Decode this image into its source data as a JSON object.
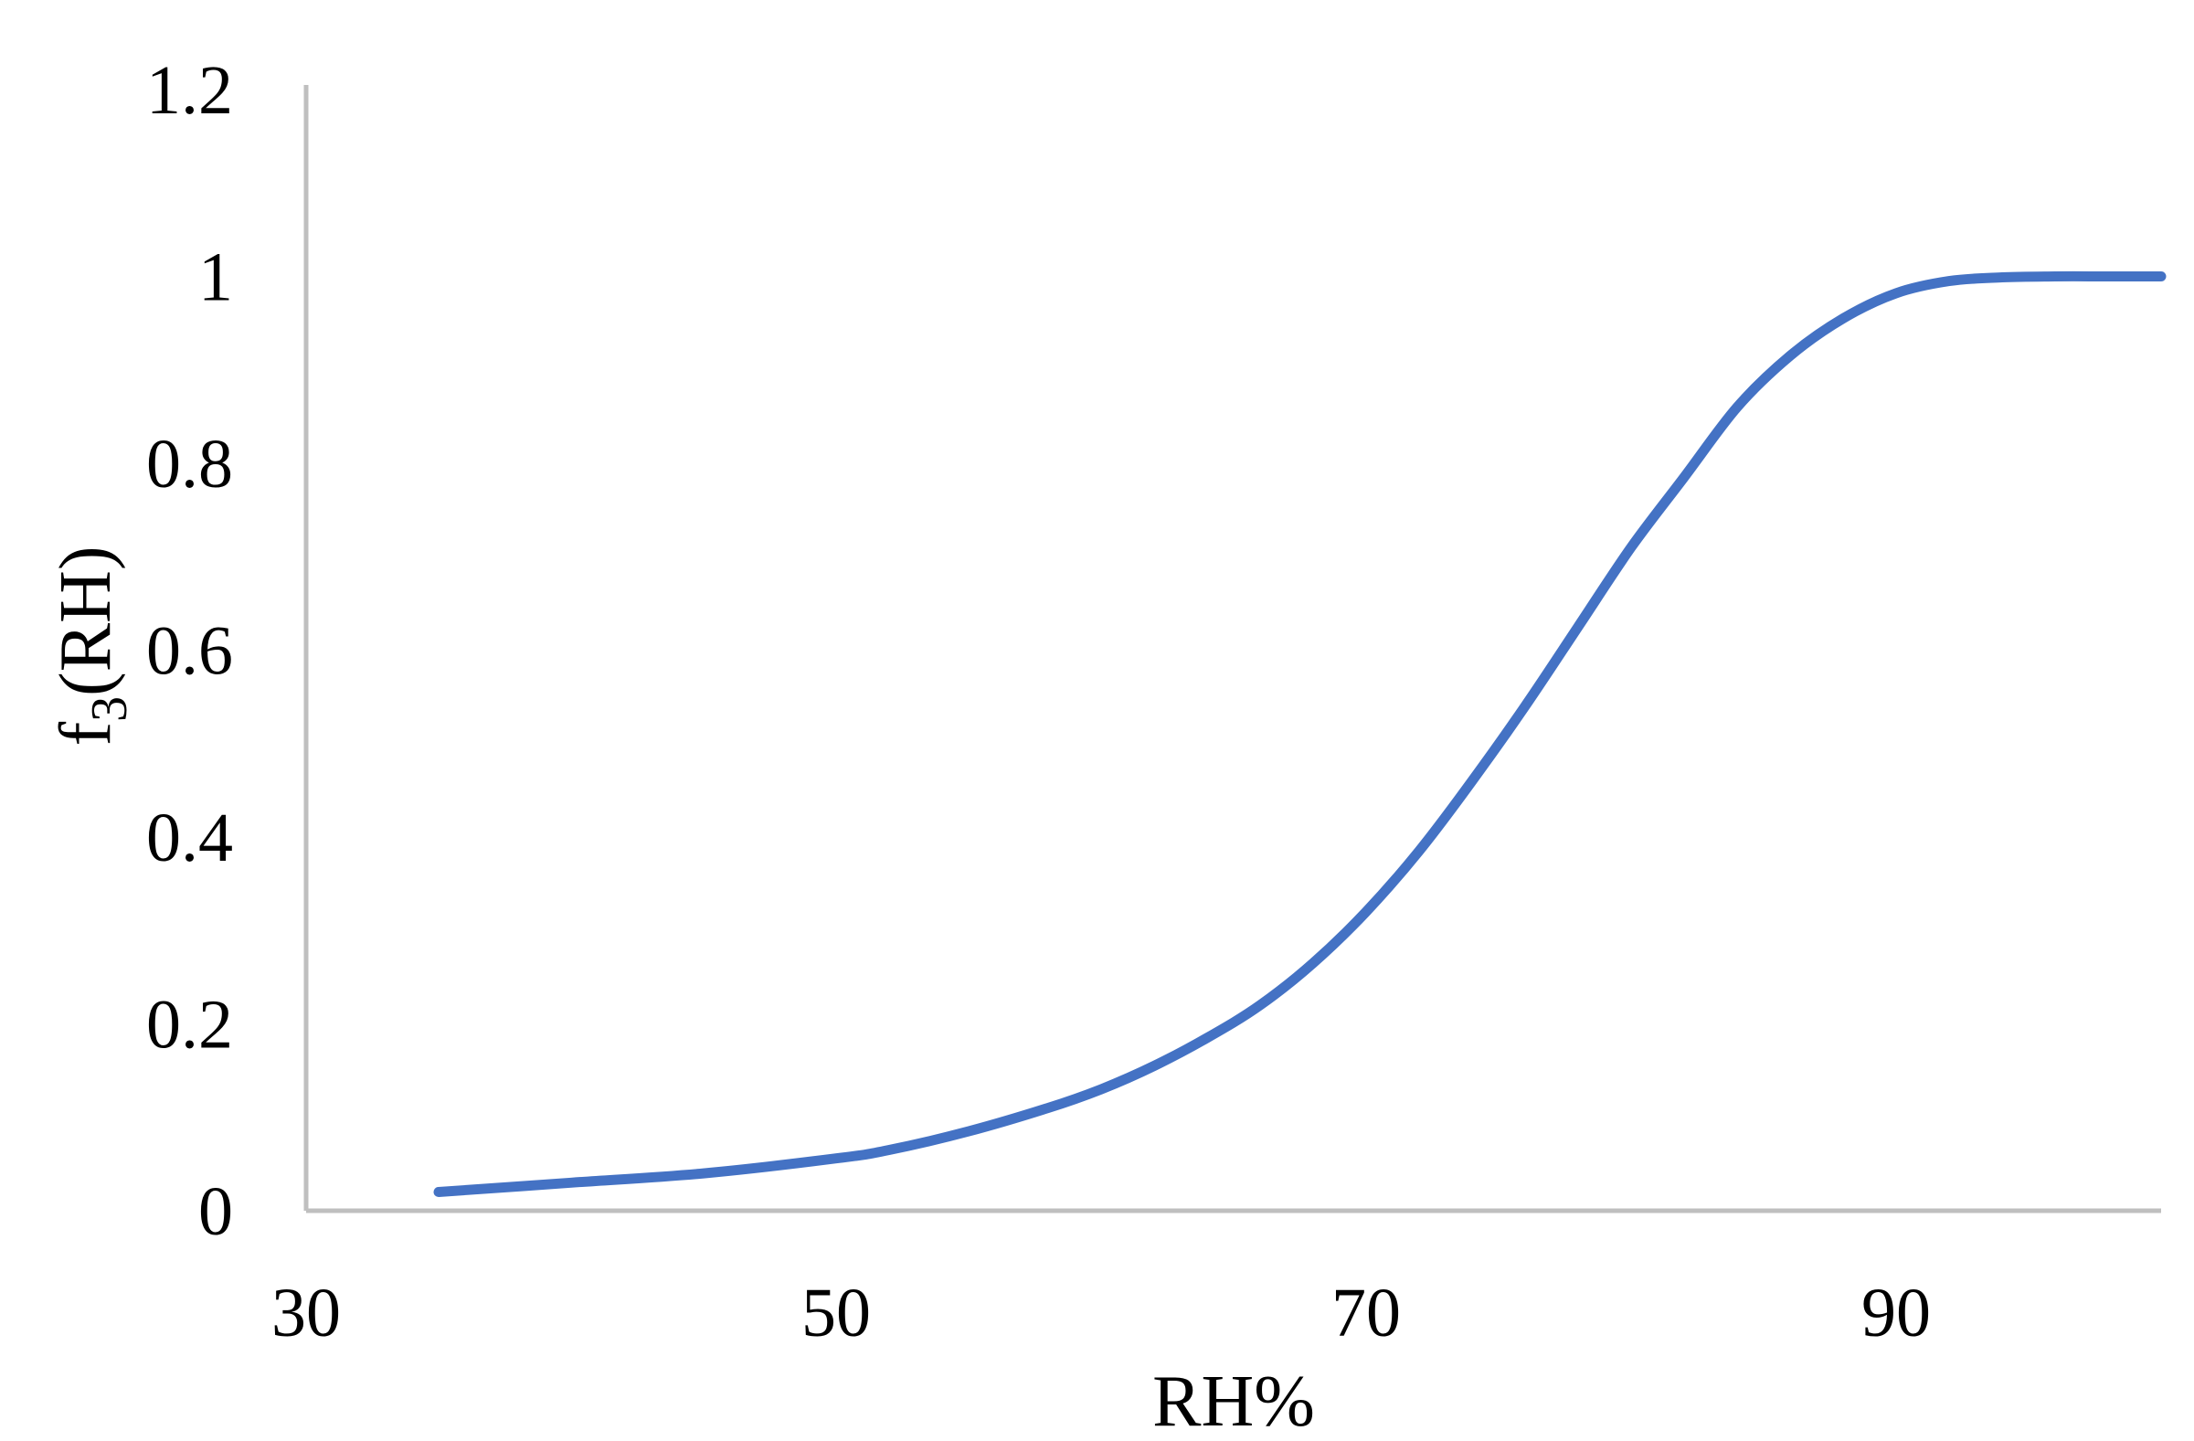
{
  "chart_data": {
    "type": "line",
    "title": "",
    "xlabel": "RH%",
    "ylabel": {
      "main": "f",
      "sub": "3",
      "rest": "(RH)"
    },
    "xlim": [
      30,
      100
    ],
    "ylim": [
      0,
      1.2
    ],
    "x_ticks": [
      "30",
      "50",
      "70",
      "90"
    ],
    "y_ticks": [
      "0",
      "0.2",
      "0.4",
      "0.6",
      "0.8",
      "1",
      "1.2"
    ],
    "grid": false,
    "legend": "none",
    "colors": {
      "line": "#4472C4",
      "axis": "#BFBFBF"
    },
    "series": [
      {
        "x": [
          35,
          40,
          45,
          50,
          52,
          55,
          58,
          60,
          62,
          64,
          66,
          68,
          70,
          72,
          74,
          76,
          78,
          80,
          82,
          84,
          86,
          88,
          90,
          92,
          94,
          96,
          98,
          100
        ],
        "y": [
          0.02,
          0.03,
          0.04,
          0.056,
          0.065,
          0.085,
          0.11,
          0.13,
          0.155,
          0.185,
          0.22,
          0.265,
          0.32,
          0.385,
          0.46,
          0.54,
          0.625,
          0.71,
          0.785,
          0.86,
          0.915,
          0.955,
          0.982,
          0.995,
          0.999,
          1.0,
          1.0,
          1.0
        ]
      }
    ]
  }
}
